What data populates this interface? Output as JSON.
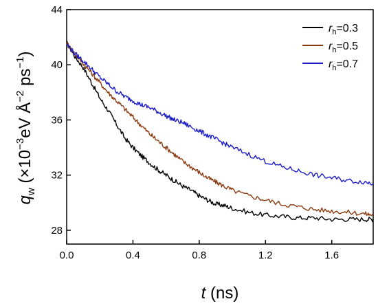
{
  "chart_data": {
    "type": "line",
    "xlim": [
      0.0,
      1.85
    ],
    "ylim": [
      27,
      44
    ],
    "x_ticks": [
      {
        "value": 0.0,
        "label": "0.0"
      },
      {
        "value": 0.4,
        "label": "0.4"
      },
      {
        "value": 0.8,
        "label": "0.8"
      },
      {
        "value": 1.2,
        "label": "1.2"
      },
      {
        "value": 1.6,
        "label": "1.6"
      }
    ],
    "y_ticks": [
      {
        "value": 28,
        "label": "28"
      },
      {
        "value": 32,
        "label": "32"
      },
      {
        "value": 36,
        "label": "36"
      },
      {
        "value": 40,
        "label": "40"
      },
      {
        "value": 44,
        "label": "44"
      }
    ],
    "xlabel": {
      "symbol": "t",
      "rest": " (ns)"
    },
    "ylabel": {
      "symbol": "q",
      "sub": "w",
      "a": " (×10",
      "sup1": "−3",
      "b": "eV Å",
      "sup2": "−2",
      "c": " ps",
      "sup3": "−1",
      "d": ")"
    },
    "legend_position": "top-right",
    "grid": false,
    "series": [
      {
        "name": {
          "pre": "r",
          "sub": "h",
          "post": "=0.3"
        },
        "color": "#000000",
        "x": [
          0.0,
          0.05,
          0.1,
          0.15,
          0.2,
          0.25,
          0.3,
          0.35,
          0.4,
          0.45,
          0.5,
          0.55,
          0.6,
          0.65,
          0.7,
          0.75,
          0.8,
          0.85,
          0.9,
          0.95,
          1.0,
          1.1,
          1.2,
          1.3,
          1.4,
          1.5,
          1.6,
          1.7,
          1.8,
          1.85
        ],
        "y": [
          41.6,
          40.6,
          39.8,
          38.7,
          37.6,
          36.7,
          35.7,
          34.7,
          34.0,
          33.4,
          32.9,
          32.4,
          32.0,
          31.6,
          31.2,
          30.9,
          30.5,
          30.2,
          29.9,
          29.8,
          29.6,
          29.3,
          29.1,
          29.0,
          28.9,
          28.9,
          28.8,
          28.8,
          28.8,
          28.8
        ]
      },
      {
        "name": {
          "pre": "r",
          "sub": "h",
          "post": "=0.5"
        },
        "color": "#8b3a10",
        "x": [
          0.0,
          0.05,
          0.1,
          0.15,
          0.2,
          0.25,
          0.3,
          0.35,
          0.4,
          0.45,
          0.5,
          0.55,
          0.6,
          0.65,
          0.7,
          0.75,
          0.8,
          0.85,
          0.9,
          0.95,
          1.0,
          1.1,
          1.2,
          1.3,
          1.4,
          1.5,
          1.6,
          1.7,
          1.8,
          1.85
        ],
        "y": [
          41.6,
          40.8,
          40.1,
          39.4,
          38.7,
          38.0,
          37.4,
          36.8,
          36.2,
          35.6,
          35.0,
          34.5,
          34.0,
          33.5,
          33.0,
          32.6,
          32.2,
          31.8,
          31.5,
          31.2,
          30.9,
          30.5,
          30.2,
          29.9,
          29.7,
          29.5,
          29.4,
          29.3,
          29.2,
          29.1
        ]
      },
      {
        "name": {
          "pre": "r",
          "sub": "h",
          "post": "=0.7"
        },
        "color": "#1c1cc8",
        "x": [
          0.0,
          0.05,
          0.1,
          0.15,
          0.2,
          0.25,
          0.3,
          0.35,
          0.4,
          0.45,
          0.5,
          0.55,
          0.6,
          0.65,
          0.7,
          0.75,
          0.8,
          0.85,
          0.9,
          0.95,
          1.0,
          1.1,
          1.2,
          1.3,
          1.4,
          1.5,
          1.6,
          1.7,
          1.8,
          1.85
        ],
        "y": [
          41.5,
          40.8,
          40.3,
          39.7,
          39.1,
          38.6,
          38.1,
          37.7,
          37.4,
          37.1,
          36.9,
          36.6,
          36.3,
          36.0,
          35.8,
          35.5,
          35.2,
          34.9,
          34.6,
          34.3,
          34.0,
          33.5,
          33.0,
          32.6,
          32.3,
          32.0,
          31.8,
          31.6,
          31.5,
          31.4
        ]
      }
    ]
  }
}
